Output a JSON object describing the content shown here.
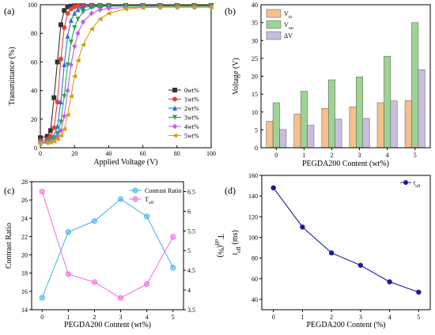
{
  "chart_data": [
    {
      "type": "line",
      "panel_label": "(a)",
      "xlabel": "Applied Voltage (V)",
      "ylabel": "Transmittance (%)",
      "xlim": [
        0,
        100
      ],
      "ylim": [
        0,
        100
      ],
      "xticks": [
        0,
        20,
        40,
        60,
        80,
        100
      ],
      "yticks": [
        0,
        20,
        40,
        60,
        80,
        100
      ],
      "legend_position": "right",
      "series": [
        {
          "name": "0wt%",
          "color": "#333333",
          "marker": "square",
          "x": [
            0,
            4,
            6,
            8,
            10,
            12,
            14,
            16,
            18,
            20,
            22,
            25,
            30,
            35,
            40,
            50,
            60,
            70,
            80,
            90,
            100
          ],
          "y": [
            7,
            8,
            12,
            35,
            60,
            86,
            96,
            98.5,
            99,
            99.2,
            99.3,
            99.4,
            99.5,
            99.5,
            99.5,
            99.5,
            99.5,
            99.5,
            99.5,
            99.5,
            99.5
          ]
        },
        {
          "name": "1wt%",
          "color": "#e8413c",
          "marker": "circle",
          "x": [
            0,
            4,
            6,
            8,
            10,
            12,
            14,
            16,
            18,
            20,
            22,
            25,
            30,
            35,
            40,
            50,
            60,
            70,
            80,
            90,
            100
          ],
          "y": [
            5,
            6,
            8,
            14,
            32,
            62,
            84,
            94,
            97,
            98.5,
            99,
            99.3,
            99.5,
            99.5,
            99.5,
            99.5,
            99.5,
            99.5,
            99.5,
            99.5,
            99.5
          ]
        },
        {
          "name": "2wt%",
          "color": "#2f6fd1",
          "marker": "triangle-up",
          "x": [
            0,
            4,
            6,
            8,
            10,
            12,
            14,
            16,
            18,
            20,
            22,
            25,
            30,
            35,
            40,
            50,
            60,
            70,
            80,
            90,
            100
          ],
          "y": [
            4,
            4.5,
            5.5,
            8,
            15,
            32,
            58,
            78,
            89,
            94,
            96.5,
            98,
            99,
            99.2,
            99.3,
            99.3,
            99.3,
            99.3,
            99.3,
            99.3,
            99.3
          ]
        },
        {
          "name": "3wt%",
          "color": "#2aa64d",
          "marker": "triangle-down",
          "x": [
            0,
            4,
            6,
            8,
            10,
            12,
            14,
            16,
            18,
            20,
            22,
            25,
            30,
            35,
            40,
            50,
            60,
            70,
            80,
            90,
            100
          ],
          "y": [
            4,
            4.3,
            5,
            6.5,
            10,
            18,
            36,
            58,
            74,
            84,
            90,
            95,
            98,
            98.8,
            99,
            99,
            99,
            99,
            99,
            99,
            99
          ]
        },
        {
          "name": "4wt%",
          "color": "#c05ef0",
          "marker": "diamond",
          "x": [
            0,
            4,
            6,
            8,
            10,
            12,
            14,
            16,
            18,
            20,
            22,
            25,
            30,
            35,
            40,
            50,
            60,
            70,
            80,
            90,
            100
          ],
          "y": [
            3.5,
            3.8,
            4.3,
            5.2,
            7.5,
            12,
            22,
            40,
            58,
            71,
            80,
            88,
            94,
            96.5,
            97.5,
            98,
            98.2,
            98.3,
            98.3,
            98.3,
            98.3
          ]
        },
        {
          "name": "5wt%",
          "color": "#d4a015",
          "marker": "triangle-left",
          "x": [
            0,
            4,
            6,
            8,
            10,
            12,
            14,
            16,
            18,
            20,
            22,
            25,
            30,
            35,
            40,
            50,
            60,
            70,
            80,
            90,
            100
          ],
          "y": [
            3,
            3.3,
            3.8,
            4.5,
            6,
            8.5,
            13,
            23,
            36,
            50,
            61,
            72,
            83,
            90,
            94,
            97,
            98,
            98.3,
            98.3,
            98.3,
            98.3
          ]
        }
      ]
    },
    {
      "type": "bar",
      "panel_label": "(b)",
      "xlabel": "PEGDA200 Content (wt%)",
      "ylabel": "Voltage (V)",
      "categories": [
        "0",
        "1",
        "2",
        "3",
        "4",
        "5"
      ],
      "ylim": [
        0,
        40
      ],
      "yticks": [
        0,
        5,
        10,
        15,
        20,
        25,
        30,
        35,
        40
      ],
      "legend_position": "top-left",
      "series": [
        {
          "name_main": "V",
          "name_sub": "th",
          "color": "#f6c08c",
          "values": [
            7.4,
            9.4,
            11,
            11.4,
            12.6,
            13.2
          ]
        },
        {
          "name_main": "V",
          "name_sub": "sat",
          "color": "#9fd394",
          "values": [
            12.6,
            15.8,
            19,
            19.8,
            25.6,
            35
          ]
        },
        {
          "name_main": "ΔV",
          "name_sub": "",
          "color": "#c9bde0",
          "values": [
            5.1,
            6.3,
            8,
            8.2,
            13.1,
            21.8
          ]
        }
      ]
    },
    {
      "type": "line",
      "panel_label": "(c)",
      "xlabel": "PEGDA200 Content (wt%)",
      "ylabel": "Contrast Ratio",
      "ylabel_right_main": "T",
      "ylabel_right_sub": "off",
      "ylabel_right_unit": "(%)",
      "x": [
        0,
        1,
        2,
        3,
        4,
        5
      ],
      "xticks": [
        0,
        1,
        2,
        3,
        4,
        5
      ],
      "xlim": [
        -0.4,
        5.4
      ],
      "ylim": [
        14,
        28
      ],
      "yticks": [
        14,
        16,
        18,
        20,
        22,
        24,
        26,
        28
      ],
      "ylim_right": [
        3.5,
        6.75
      ],
      "yticks_right": [
        3.5,
        4.0,
        4.5,
        5.0,
        5.5,
        6.0,
        6.5
      ],
      "legend_position": "top-right",
      "series": [
        {
          "name": "Contrast Ratio",
          "color": "#40b4e6",
          "axis": "left",
          "values": [
            15.3,
            22.5,
            23.7,
            26.1,
            24.2,
            18.6
          ]
        },
        {
          "name_main": "T",
          "name_sub": "off",
          "color": "#f26ae0",
          "axis": "right",
          "values": [
            6.5,
            4.4,
            4.2,
            3.8,
            4.15,
            5.35
          ]
        }
      ]
    },
    {
      "type": "line",
      "panel_label": "(d)",
      "xlabel": "PEGDA200 Content (%)",
      "ylabel_main": "t",
      "ylabel_sub": "off",
      "ylabel_unit": " (ms)",
      "x": [
        0,
        1,
        2,
        3,
        4,
        5
      ],
      "xticks": [
        0,
        1,
        2,
        3,
        4,
        5
      ],
      "xlim": [
        -0.4,
        5.4
      ],
      "ylim": [
        30,
        160
      ],
      "yticks": [
        40,
        60,
        80,
        100,
        120,
        140,
        160
      ],
      "legend_position": "top-right",
      "series": [
        {
          "name_main": "t",
          "name_sub": "off",
          "color": "#1a1a9c",
          "values": [
            148,
            110,
            85,
            73,
            57,
            47
          ]
        }
      ]
    }
  ]
}
